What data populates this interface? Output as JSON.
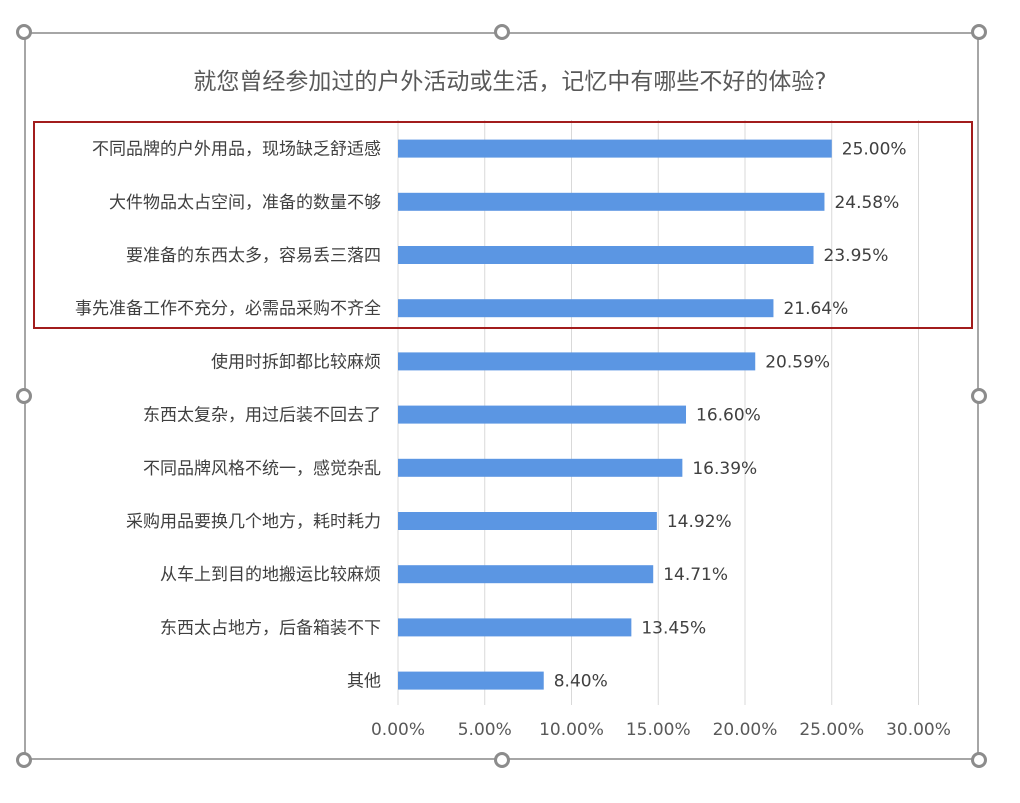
{
  "chart_data": {
    "type": "bar",
    "orientation": "horizontal",
    "title": "就您曾经参加过的户外活动或生活，记忆中有哪些不好的体验?",
    "categories": [
      "不同品牌的户外用品，现场缺乏舒适感",
      "大件物品太占空间，准备的数量不够",
      "要准备的东西太多，容易丢三落四",
      "事先准备工作不充分，必需品采购不齐全",
      "使用时拆卸都比较麻烦",
      "东西太复杂，用过后装不回去了",
      "不同品牌风格不统一，感觉杂乱",
      "采购用品要换几个地方，耗时耗力",
      "从车上到目的地搬运比较麻烦",
      "东西太占地方，后备箱装不下",
      "其他"
    ],
    "values": [
      25.0,
      24.58,
      23.95,
      21.64,
      20.59,
      16.6,
      16.39,
      14.92,
      14.71,
      13.45,
      8.4
    ],
    "data_labels": [
      "25.00%",
      "24.58%",
      "23.95%",
      "21.64%",
      "20.59%",
      "16.60%",
      "16.39%",
      "14.92%",
      "14.71%",
      "13.45%",
      "8.40%"
    ],
    "xticks": [
      "0.00%",
      "5.00%",
      "10.00%",
      "15.00%",
      "20.00%",
      "25.00%",
      "30.00%"
    ],
    "xlim": [
      0,
      30
    ],
    "grid": true,
    "bar_color": "#5b96e3",
    "highlight_color": "#a21c1c",
    "highlighted_categories": [
      0,
      1,
      2,
      3
    ]
  }
}
